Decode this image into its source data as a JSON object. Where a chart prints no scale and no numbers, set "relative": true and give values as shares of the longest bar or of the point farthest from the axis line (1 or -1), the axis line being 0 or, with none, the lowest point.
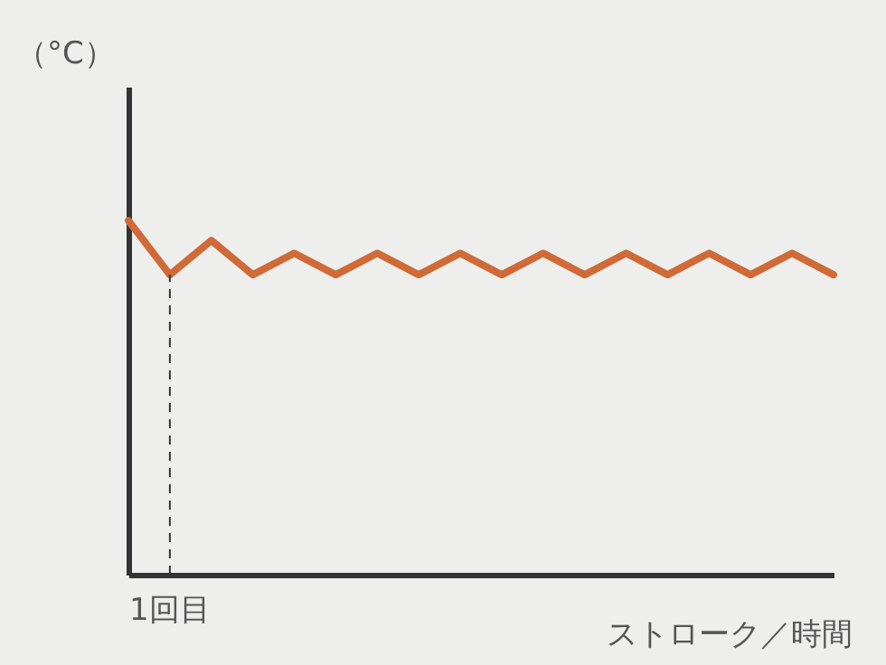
{
  "chart_data": {
    "type": "line",
    "ylabel": "（°C）",
    "xlabel": "ストローク／時間",
    "relative": true,
    "categories": [
      null,
      null,
      null,
      null,
      null,
      null,
      null,
      null,
      null,
      null,
      null,
      null,
      null,
      null,
      null,
      null,
      null,
      null
    ],
    "series": [
      {
        "color": "#d06a36",
        "values": [
          1,
          0.847,
          0.944,
          0.847,
          0.908,
          0.847,
          0.908,
          0.847,
          0.908,
          0.847,
          0.908,
          0.847,
          0.908,
          0.847,
          0.908,
          0.847,
          0.908,
          0.847
        ]
      }
    ],
    "annotations": [
      "1回目"
    ],
    "grid": false,
    "marker": "none",
    "line_style": "solid"
  }
}
